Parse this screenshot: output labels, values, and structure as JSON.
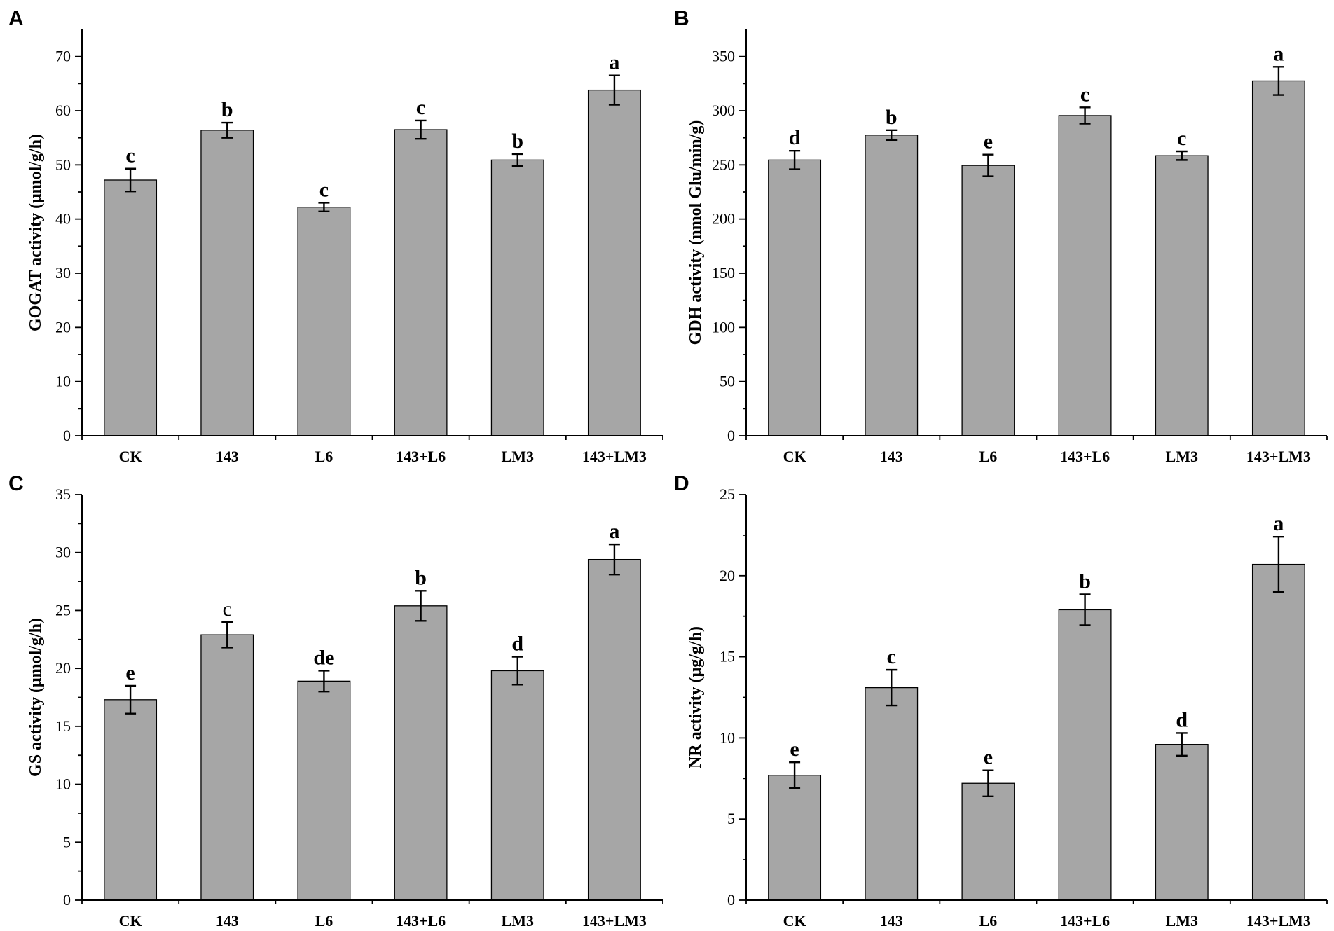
{
  "chart_data": [
    {
      "panel": "A",
      "type": "bar",
      "ylabel": "GOGAT activity (μmol/g/h)",
      "categories": [
        "CK",
        "143",
        "L6",
        "143+L6",
        "LM3",
        "143+LM3"
      ],
      "values": [
        47.2,
        56.4,
        42.2,
        56.5,
        50.9,
        63.8
      ],
      "errors": [
        2.1,
        1.4,
        0.8,
        1.7,
        1.1,
        2.7
      ],
      "significance": [
        "c",
        "b",
        "c",
        "c",
        "b",
        "a"
      ],
      "ylim": [
        0,
        75
      ],
      "yticks": [
        0,
        10,
        20,
        30,
        40,
        50,
        60,
        70
      ]
    },
    {
      "panel": "B",
      "type": "bar",
      "ylabel": "GDH activity (nmol Glu/min/g)",
      "categories": [
        "CK",
        "143",
        "L6",
        "143+L6",
        "LM3",
        "143+LM3"
      ],
      "values": [
        254.5,
        277.5,
        249.5,
        295.5,
        258.5,
        327.5
      ],
      "errors": [
        8.5,
        4.5,
        10,
        7.5,
        4,
        13
      ],
      "significance": [
        "d",
        "b",
        "e",
        "c",
        "c",
        "a"
      ],
      "ylim": [
        0,
        375
      ],
      "yticks": [
        0,
        50,
        100,
        150,
        200,
        250,
        300,
        350
      ]
    },
    {
      "panel": "C",
      "type": "bar",
      "ylabel": "GS activity (μmol/g/h)",
      "categories": [
        "CK",
        "143",
        "L6",
        "143+L6",
        "LM3",
        "143+LM3"
      ],
      "values": [
        17.3,
        22.9,
        18.9,
        25.4,
        19.8,
        29.4
      ],
      "errors": [
        1.2,
        1.1,
        0.9,
        1.3,
        1.2,
        1.3
      ],
      "significance": [
        "e",
        "c",
        "de",
        "b",
        "d",
        "a"
      ],
      "ylim": [
        0,
        35
      ],
      "yticks": [
        0,
        5,
        10,
        15,
        20,
        25,
        30,
        35
      ]
    },
    {
      "panel": "D",
      "type": "bar",
      "ylabel": "NR activity (μg/g/h)",
      "categories": [
        "CK",
        "143",
        "L6",
        "143+L6",
        "LM3",
        "143+LM3"
      ],
      "values": [
        7.7,
        13.1,
        7.2,
        17.9,
        9.6,
        20.7
      ],
      "errors": [
        0.8,
        1.1,
        0.8,
        0.95,
        0.7,
        1.7
      ],
      "significance": [
        "e",
        "c",
        "e",
        "b",
        "d",
        "a"
      ],
      "ylim": [
        0,
        25
      ],
      "yticks": [
        0,
        5,
        10,
        15,
        20,
        25
      ]
    }
  ]
}
